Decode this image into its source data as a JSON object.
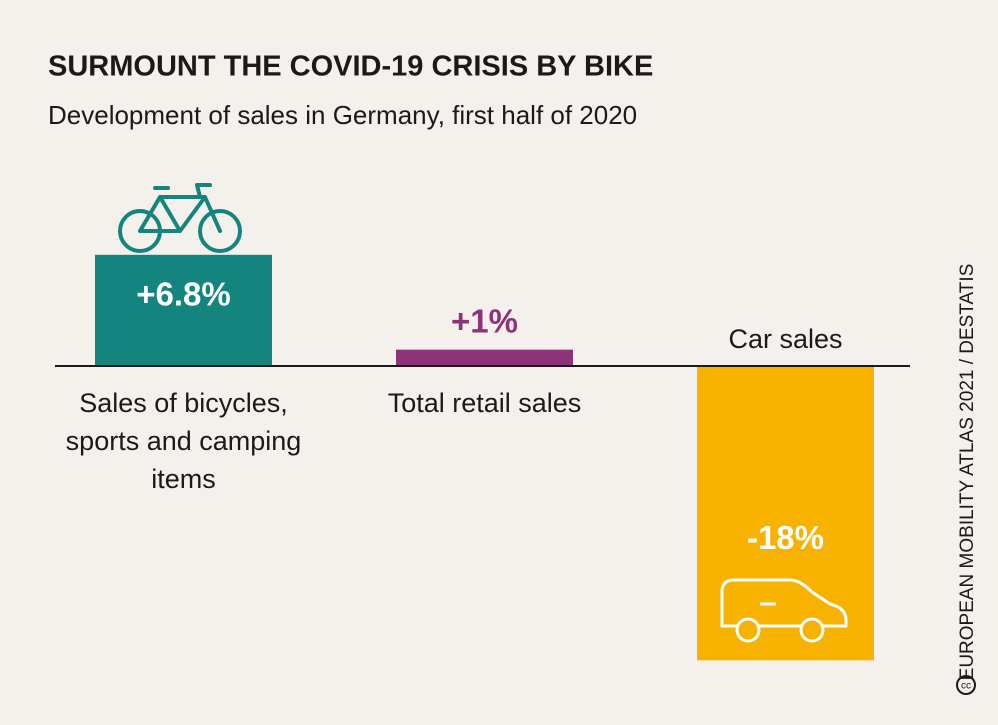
{
  "chart_data": {
    "type": "bar",
    "title": "SURMOUNT THE COVID-19 CRISIS BY BIKE",
    "subtitle": "Development of sales in Germany, first half of 2020",
    "categories": [
      "Sales of bicycles, sports and camping items",
      "Total retail sales",
      "Car sales"
    ],
    "values": [
      6.8,
      1,
      -18
    ],
    "value_labels": [
      "+6.8%",
      "+1%",
      "-18%"
    ],
    "colors": [
      "#13857e",
      "#8e3378",
      "#f7b200"
    ],
    "source": "EUROPEAN MOBILITY ATLAS 2021 / DESTATIS"
  }
}
